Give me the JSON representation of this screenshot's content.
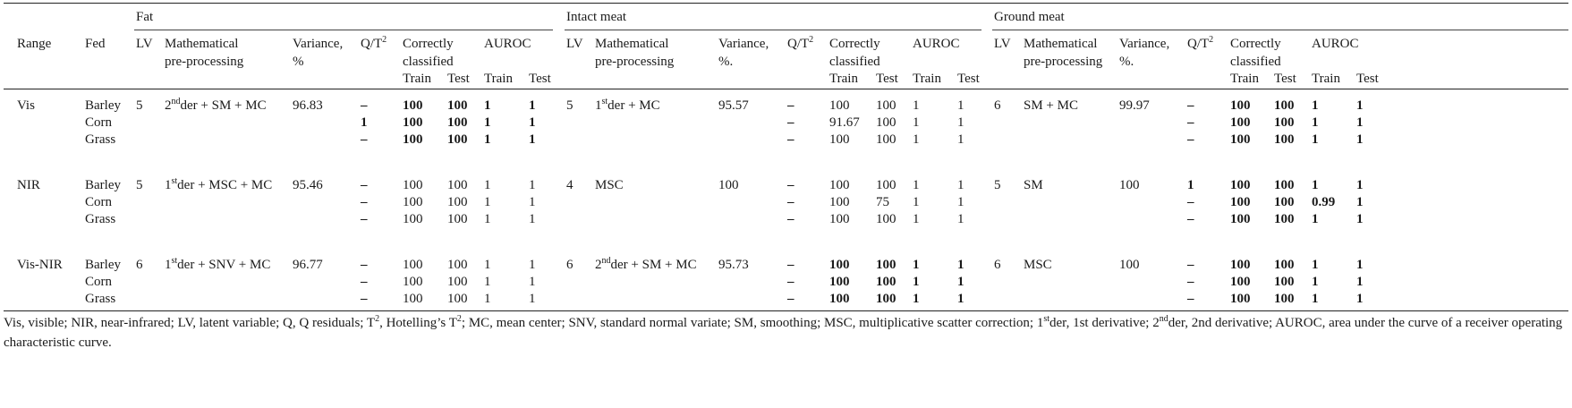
{
  "header": {
    "groups": [
      "Fat",
      "Intact meat",
      "Ground meat"
    ],
    "range": "Range",
    "fed": "Fed",
    "lv": "LV",
    "math_line1": "Mathematical",
    "math_line2": "pre-processing",
    "variance": [
      "Variance,",
      "Variance,",
      "Variance,"
    ],
    "variance_unit": [
      "%",
      "%.",
      "%."
    ],
    "qt_q": "Q/T",
    "qt_sup": "2",
    "correctly_line1": "Correctly",
    "correctly_line2": "classified",
    "auroc": "AUROC",
    "train": "Train",
    "test": "Test"
  },
  "rows": [
    {
      "range": "Vis",
      "fat_lv": "5",
      "fat_pre": [
        "2",
        "nd",
        "der + SM + MC"
      ],
      "fat_var": "96.83",
      "int_lv": "5",
      "int_pre": [
        "1",
        "st",
        "der + MC"
      ],
      "int_var": "95.57",
      "grd_lv": "6",
      "grd_pre": [
        "SM + MC",
        "",
        ""
      ],
      "grd_var": "99.97",
      "feds": [
        {
          "fed": "Barley",
          "fat": [
            "–",
            "100",
            "100",
            "1",
            "1"
          ],
          "int": [
            "–",
            "100",
            "100",
            "1",
            "1"
          ],
          "grd": [
            "–",
            "100",
            "100",
            "1",
            "1"
          ]
        },
        {
          "fed": "Corn",
          "fat": [
            "1",
            "100",
            "100",
            "1",
            "1"
          ],
          "int": [
            "–",
            "91.67",
            "100",
            "1",
            "1"
          ],
          "grd": [
            "–",
            "100",
            "100",
            "1",
            "1"
          ]
        },
        {
          "fed": "Grass",
          "fat": [
            "–",
            "100",
            "100",
            "1",
            "1"
          ],
          "int": [
            "–",
            "100",
            "100",
            "1",
            "1"
          ],
          "grd": [
            "–",
            "100",
            "100",
            "1",
            "1"
          ]
        }
      ],
      "bold": {
        "fat": true,
        "int": false,
        "grd": true
      }
    },
    {
      "range": "NIR",
      "fat_lv": "5",
      "fat_pre": [
        "1",
        "st",
        "der + MSC + MC"
      ],
      "fat_var": "95.46",
      "int_lv": "4",
      "int_pre": [
        "MSC",
        "",
        ""
      ],
      "int_var": "100",
      "grd_lv": "5",
      "grd_pre": [
        "SM",
        "",
        ""
      ],
      "grd_var": "100",
      "feds": [
        {
          "fed": "Barley",
          "fat": [
            "–",
            "100",
            "100",
            "1",
            "1"
          ],
          "int": [
            "–",
            "100",
            "100",
            "1",
            "1"
          ],
          "grd": [
            "1",
            "100",
            "100",
            "1",
            "1"
          ]
        },
        {
          "fed": "Corn",
          "fat": [
            "–",
            "100",
            "100",
            "1",
            "1"
          ],
          "int": [
            "–",
            "100",
            "75",
            "1",
            "1"
          ],
          "grd": [
            "–",
            "100",
            "100",
            "0.99",
            "1"
          ]
        },
        {
          "fed": "Grass",
          "fat": [
            "–",
            "100",
            "100",
            "1",
            "1"
          ],
          "int": [
            "–",
            "100",
            "100",
            "1",
            "1"
          ],
          "grd": [
            "–",
            "100",
            "100",
            "1",
            "1"
          ]
        }
      ],
      "bold": {
        "fat": false,
        "int": false,
        "grd": true
      }
    },
    {
      "range": "Vis-NIR",
      "fat_lv": "6",
      "fat_pre": [
        "1",
        "st",
        "der + SNV + MC"
      ],
      "fat_var": "96.77",
      "int_lv": "6",
      "int_pre": [
        "2",
        "nd",
        "der + SM + MC"
      ],
      "int_var": "95.73",
      "grd_lv": "6",
      "grd_pre": [
        "MSC",
        "",
        ""
      ],
      "grd_var": "100",
      "feds": [
        {
          "fed": "Barley",
          "fat": [
            "–",
            "100",
            "100",
            "1",
            "1"
          ],
          "int": [
            "–",
            "100",
            "100",
            "1",
            "1"
          ],
          "grd": [
            "–",
            "100",
            "100",
            "1",
            "1"
          ]
        },
        {
          "fed": "Corn",
          "fat": [
            "–",
            "100",
            "100",
            "1",
            "1"
          ],
          "int": [
            "–",
            "100",
            "100",
            "1",
            "1"
          ],
          "grd": [
            "–",
            "100",
            "100",
            "1",
            "1"
          ]
        },
        {
          "fed": "Grass",
          "fat": [
            "–",
            "100",
            "100",
            "1",
            "1"
          ],
          "int": [
            "–",
            "100",
            "100",
            "1",
            "1"
          ],
          "grd": [
            "–",
            "100",
            "100",
            "1",
            "1"
          ]
        }
      ],
      "bold": {
        "fat": false,
        "int": true,
        "grd": true
      }
    }
  ],
  "footnote": {
    "p1": "Vis, visible; NIR, near-infrared; LV, latent variable; Q, Q residuals; T",
    "p1_sup": "2",
    "p2": ", Hotelling’s T",
    "p2_sup": "2",
    "p3": "; MC, mean center; SNV, standard normal variate; SM, smoothing; MSC, multiplicative scatter correction; 1",
    "p3_sup": "st",
    "p4": "der, 1st derivative; 2",
    "p4_sup": "nd",
    "p5": "der, 2nd derivative; AUROC, area under the curve of a receiver operating characteristic curve."
  }
}
